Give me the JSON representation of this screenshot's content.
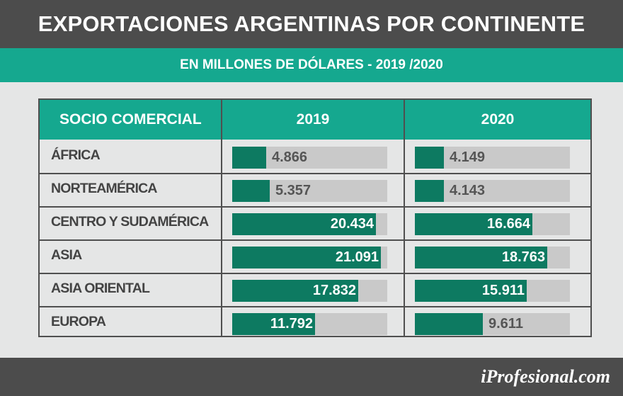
{
  "title": "EXPORTACIONES ARGENTINAS POR CONTINENTE",
  "subtitle": "EN MILLONES DE DÓLARES - 2019 /2020",
  "brand": "iProfesional.com",
  "chart_data": {
    "type": "bar",
    "orientation": "horizontal",
    "category_header": "SOCIO COMERCIAL",
    "categories": [
      "ÁFRICA",
      "NORTEAMÉRICA",
      "CENTRO Y SUDAMÉRICA",
      "ASIA",
      "ASIA ORIENTAL",
      "EUROPA"
    ],
    "series": [
      {
        "name": "2019",
        "values": [
          4866,
          5357,
          20434,
          21091,
          17832,
          11792
        ],
        "labels": [
          "4.866",
          "5.357",
          "20.434",
          "21.091",
          "17.832",
          "11.792"
        ]
      },
      {
        "name": "2020",
        "values": [
          4149,
          4143,
          16664,
          18763,
          15911,
          9611
        ],
        "labels": [
          "4.149",
          "4.143",
          "16.664",
          "18.763",
          "15.911",
          "9.611"
        ]
      }
    ],
    "xlim": [
      0,
      22000
    ],
    "unit": "millones de dólares",
    "bar_color": "#0d7a61",
    "track_color": "#c9c9c9"
  }
}
